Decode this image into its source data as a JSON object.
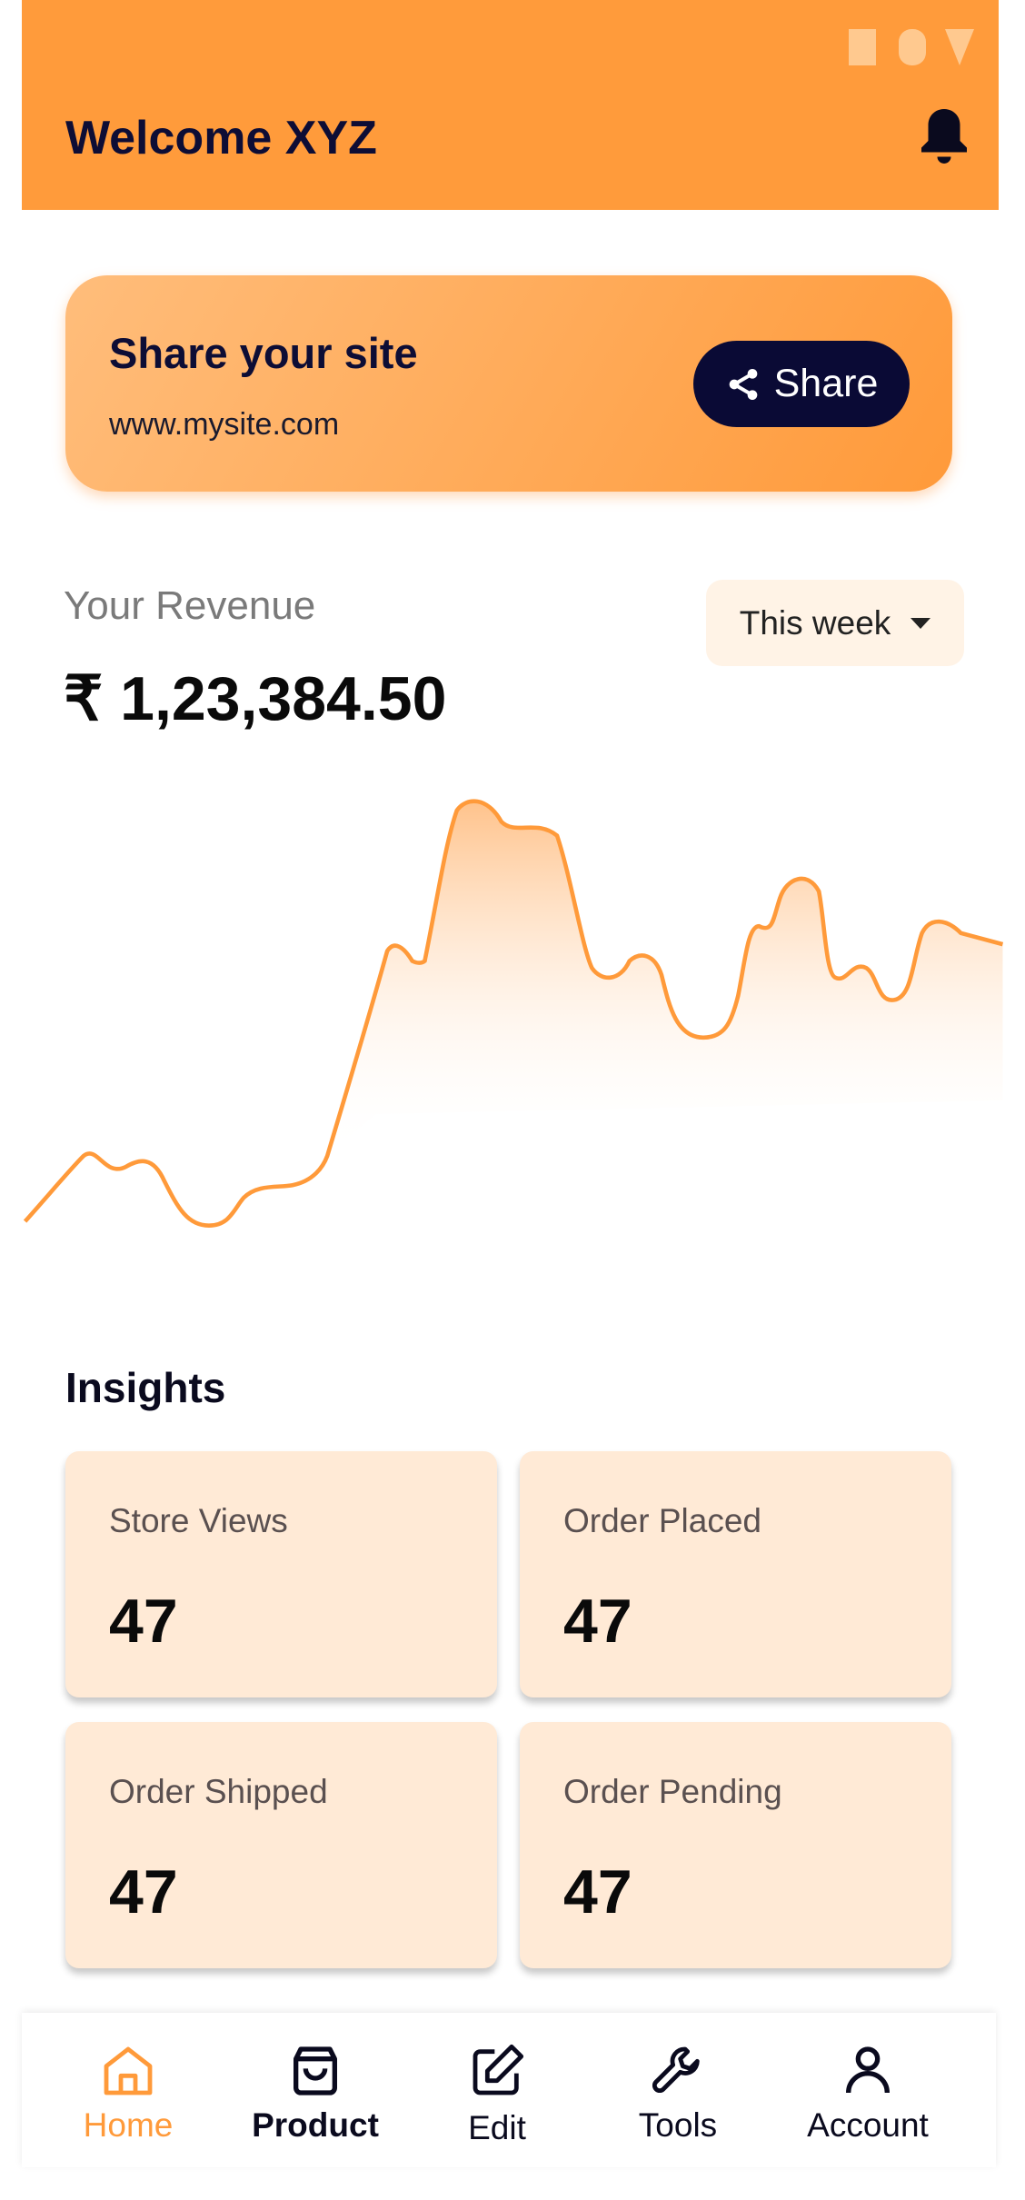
{
  "header": {
    "title": "Welcome XYZ"
  },
  "share_card": {
    "title": "Share your site",
    "url": "www.mysite.com",
    "button": "Share"
  },
  "revenue": {
    "label": "Your Revenue",
    "amount": "₹ 1,23,384.50",
    "period": "This week"
  },
  "insights": {
    "title": "Insights",
    "cards": [
      {
        "label": "Store Views",
        "value": 47
      },
      {
        "label": "Order Placed",
        "value": 47
      },
      {
        "label": "Order Shipped",
        "value": 47
      },
      {
        "label": "Order Pending",
        "value": 47
      }
    ]
  },
  "nav": {
    "items": [
      "Home",
      "Product",
      "Edit",
      "Tools",
      "Account"
    ]
  }
}
